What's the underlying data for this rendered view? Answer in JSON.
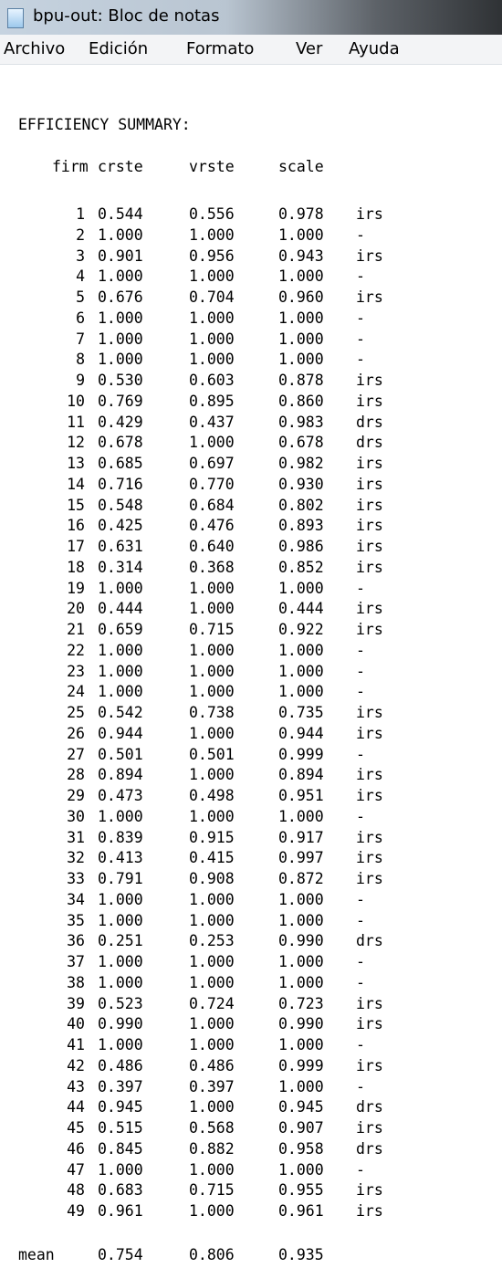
{
  "window": {
    "title": "bpu-out: Bloc de notas"
  },
  "menu": [
    "Archivo",
    "Edición",
    "Formato",
    "Ver",
    "Ayuda"
  ],
  "document": {
    "heading": "EFFICIENCY SUMMARY:",
    "columns": [
      "firm",
      "crste",
      "vrste",
      "scale"
    ],
    "rows": [
      [
        "1",
        "0.544",
        "0.556",
        "0.978",
        "irs"
      ],
      [
        "2",
        "1.000",
        "1.000",
        "1.000",
        "-"
      ],
      [
        "3",
        "0.901",
        "0.956",
        "0.943",
        "irs"
      ],
      [
        "4",
        "1.000",
        "1.000",
        "1.000",
        "-"
      ],
      [
        "5",
        "0.676",
        "0.704",
        "0.960",
        "irs"
      ],
      [
        "6",
        "1.000",
        "1.000",
        "1.000",
        "-"
      ],
      [
        "7",
        "1.000",
        "1.000",
        "1.000",
        "-"
      ],
      [
        "8",
        "1.000",
        "1.000",
        "1.000",
        "-"
      ],
      [
        "9",
        "0.530",
        "0.603",
        "0.878",
        "irs"
      ],
      [
        "10",
        "0.769",
        "0.895",
        "0.860",
        "irs"
      ],
      [
        "11",
        "0.429",
        "0.437",
        "0.983",
        "drs"
      ],
      [
        "12",
        "0.678",
        "1.000",
        "0.678",
        "drs"
      ],
      [
        "13",
        "0.685",
        "0.697",
        "0.982",
        "irs"
      ],
      [
        "14",
        "0.716",
        "0.770",
        "0.930",
        "irs"
      ],
      [
        "15",
        "0.548",
        "0.684",
        "0.802",
        "irs"
      ],
      [
        "16",
        "0.425",
        "0.476",
        "0.893",
        "irs"
      ],
      [
        "17",
        "0.631",
        "0.640",
        "0.986",
        "irs"
      ],
      [
        "18",
        "0.314",
        "0.368",
        "0.852",
        "irs"
      ],
      [
        "19",
        "1.000",
        "1.000",
        "1.000",
        "-"
      ],
      [
        "20",
        "0.444",
        "1.000",
        "0.444",
        "irs"
      ],
      [
        "21",
        "0.659",
        "0.715",
        "0.922",
        "irs"
      ],
      [
        "22",
        "1.000",
        "1.000",
        "1.000",
        "-"
      ],
      [
        "23",
        "1.000",
        "1.000",
        "1.000",
        "-"
      ],
      [
        "24",
        "1.000",
        "1.000",
        "1.000",
        "-"
      ],
      [
        "25",
        "0.542",
        "0.738",
        "0.735",
        "irs"
      ],
      [
        "26",
        "0.944",
        "1.000",
        "0.944",
        "irs"
      ],
      [
        "27",
        "0.501",
        "0.501",
        "0.999",
        "-"
      ],
      [
        "28",
        "0.894",
        "1.000",
        "0.894",
        "irs"
      ],
      [
        "29",
        "0.473",
        "0.498",
        "0.951",
        "irs"
      ],
      [
        "30",
        "1.000",
        "1.000",
        "1.000",
        "-"
      ],
      [
        "31",
        "0.839",
        "0.915",
        "0.917",
        "irs"
      ],
      [
        "32",
        "0.413",
        "0.415",
        "0.997",
        "irs"
      ],
      [
        "33",
        "0.791",
        "0.908",
        "0.872",
        "irs"
      ],
      [
        "34",
        "1.000",
        "1.000",
        "1.000",
        "-"
      ],
      [
        "35",
        "1.000",
        "1.000",
        "1.000",
        "-"
      ],
      [
        "36",
        "0.251",
        "0.253",
        "0.990",
        "drs"
      ],
      [
        "37",
        "1.000",
        "1.000",
        "1.000",
        "-"
      ],
      [
        "38",
        "1.000",
        "1.000",
        "1.000",
        "-"
      ],
      [
        "39",
        "0.523",
        "0.724",
        "0.723",
        "irs"
      ],
      [
        "40",
        "0.990",
        "1.000",
        "0.990",
        "irs"
      ],
      [
        "41",
        "1.000",
        "1.000",
        "1.000",
        "-"
      ],
      [
        "42",
        "0.486",
        "0.486",
        "0.999",
        "irs"
      ],
      [
        "43",
        "0.397",
        "0.397",
        "1.000",
        "-"
      ],
      [
        "44",
        "0.945",
        "1.000",
        "0.945",
        "drs"
      ],
      [
        "45",
        "0.515",
        "0.568",
        "0.907",
        "irs"
      ],
      [
        "46",
        "0.845",
        "0.882",
        "0.958",
        "drs"
      ],
      [
        "47",
        "1.000",
        "1.000",
        "1.000",
        "-"
      ],
      [
        "48",
        "0.683",
        "0.715",
        "0.955",
        "irs"
      ],
      [
        "49",
        "0.961",
        "1.000",
        "0.961",
        "irs"
      ]
    ],
    "mean": [
      "mean",
      "0.754",
      "0.806",
      "0.935"
    ]
  }
}
